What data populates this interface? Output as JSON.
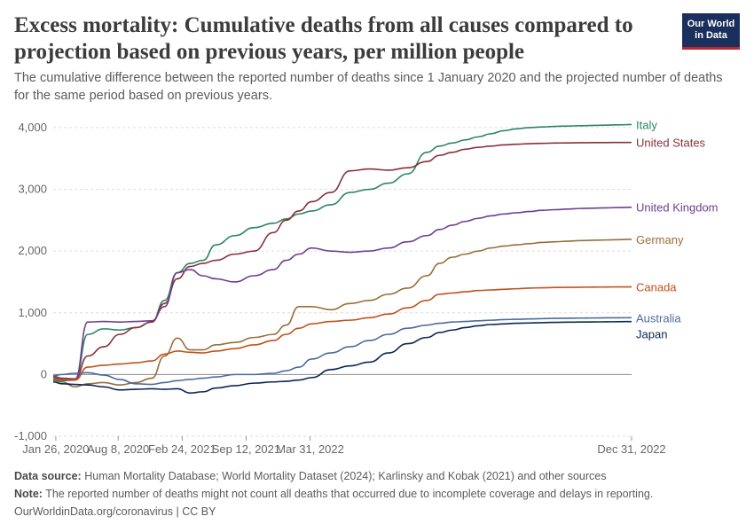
{
  "title": "Excess mortality: Cumulative deaths from all causes compared to projection based on previous years, per million people",
  "subtitle": "The cumulative difference between the reported number of deaths since 1 January 2020 and the projected number of deaths for the same period based on previous years.",
  "logo": {
    "line1": "Our World",
    "line2": "in Data"
  },
  "footer": {
    "source_label": "Data source:",
    "source_text": "Human Mortality Database; World Mortality Dataset (2024); Karlinsky and Kobak (2021) and other sources",
    "note_label": "Note:",
    "note_text": "The reported number of deaths might not count all deaths that occurred due to incomplete coverage and delays in reporting.",
    "credit": "OurWorldinData.org/coronavirus | CC BY"
  },
  "chart_data": {
    "type": "line",
    "title": "Excess mortality: Cumulative deaths from all causes compared to projection based on previous years, per million people",
    "xlabel": "",
    "ylabel": "",
    "x_unit": "days since Jan 26, 2020",
    "xlim": [
      -8,
      1800
    ],
    "ylim": [
      -1000,
      4200
    ],
    "yticks": [
      -1000,
      0,
      1000,
      2000,
      3000,
      4000
    ],
    "ytick_labels": [
      "-1,000",
      "0",
      "1,000",
      "2,000",
      "3,000",
      "4,000"
    ],
    "xticks": [
      0,
      195,
      395,
      595,
      795,
      1800
    ],
    "xtick_labels": [
      "Jan 26, 2020",
      "Aug 8, 2020",
      "Feb 24, 2021",
      "Sep 12, 2021",
      "Mar 31, 2022",
      "Dec 31, 2022"
    ],
    "grid": "horizontal dashed",
    "legend": "right, inline labels",
    "x": [
      -8,
      20,
      60,
      100,
      150,
      200,
      250,
      300,
      340,
      380,
      420,
      460,
      500,
      560,
      620,
      680,
      720,
      760,
      800,
      860,
      920,
      980,
      1040,
      1100,
      1160,
      1200,
      1240,
      1280,
      1320,
      1360,
      1400,
      1440,
      1480,
      1520,
      1560,
      1600,
      1640,
      1680,
      1720,
      1760,
      1800
    ],
    "series": [
      {
        "name": "Italy",
        "color": "#2c8465",
        "values": [
          -80,
          -100,
          -90,
          650,
          740,
          720,
          760,
          850,
          1200,
          1650,
          1800,
          1850,
          2100,
          2250,
          2380,
          2450,
          2520,
          2600,
          2650,
          2750,
          2950,
          3000,
          3100,
          3250,
          3600,
          3700,
          3750,
          3800,
          3850,
          3900,
          3950,
          3980,
          4000,
          4010,
          4020,
          4025,
          4030,
          4035,
          4040,
          4045,
          4050
        ]
      },
      {
        "name": "United States",
        "color": "#883039",
        "values": [
          -30,
          -60,
          -70,
          300,
          450,
          650,
          760,
          850,
          1150,
          1550,
          1750,
          1800,
          1850,
          1950,
          2000,
          2300,
          2500,
          2650,
          2800,
          2950,
          3300,
          3330,
          3310,
          3350,
          3450,
          3550,
          3600,
          3650,
          3680,
          3700,
          3720,
          3730,
          3740,
          3745,
          3750,
          3752,
          3755,
          3757,
          3758,
          3759,
          3760
        ]
      },
      {
        "name": "United Kingdom",
        "color": "#6d3e91",
        "values": [
          -50,
          -70,
          -80,
          850,
          860,
          850,
          860,
          870,
          1100,
          1650,
          1700,
          1600,
          1550,
          1500,
          1600,
          1700,
          1850,
          1950,
          2050,
          2000,
          1980,
          2000,
          2050,
          2150,
          2250,
          2350,
          2420,
          2480,
          2530,
          2570,
          2600,
          2620,
          2640,
          2660,
          2670,
          2680,
          2690,
          2695,
          2700,
          2705,
          2710
        ]
      },
      {
        "name": "Germany",
        "color": "#996d39",
        "values": [
          -100,
          -120,
          -200,
          -150,
          -130,
          -170,
          -130,
          -60,
          300,
          590,
          400,
          400,
          480,
          520,
          600,
          650,
          800,
          1100,
          1100,
          1050,
          1150,
          1200,
          1300,
          1400,
          1600,
          1800,
          1900,
          1950,
          2000,
          2050,
          2080,
          2100,
          2120,
          2140,
          2150,
          2160,
          2170,
          2175,
          2180,
          2185,
          2190
        ]
      },
      {
        "name": "Canada",
        "color": "#c15019",
        "values": [
          -60,
          -80,
          -90,
          120,
          150,
          170,
          190,
          220,
          330,
          380,
          360,
          350,
          380,
          420,
          480,
          550,
          650,
          750,
          820,
          860,
          880,
          920,
          980,
          1080,
          1200,
          1300,
          1320,
          1340,
          1360,
          1370,
          1380,
          1390,
          1400,
          1405,
          1410,
          1412,
          1414,
          1416,
          1418,
          1419,
          1420
        ]
      },
      {
        "name": "Australia",
        "color": "#4c6a9c",
        "values": [
          -20,
          0,
          20,
          30,
          -10,
          -80,
          -150,
          -160,
          -130,
          -100,
          -80,
          -60,
          -40,
          0,
          0,
          20,
          60,
          120,
          250,
          350,
          450,
          550,
          650,
          750,
          800,
          830,
          850,
          860,
          870,
          880,
          890,
          895,
          900,
          905,
          910,
          912,
          914,
          916,
          918,
          919,
          920
        ]
      },
      {
        "name": "Japan",
        "color": "#0a2855",
        "values": [
          -120,
          -150,
          -160,
          -170,
          -200,
          -250,
          -240,
          -230,
          -240,
          -230,
          -300,
          -280,
          -220,
          -180,
          -140,
          -120,
          -110,
          -90,
          -50,
          80,
          140,
          200,
          350,
          500,
          600,
          680,
          720,
          760,
          790,
          810,
          820,
          830,
          835,
          840,
          845,
          848,
          850,
          852,
          854,
          856,
          858
        ]
      }
    ]
  }
}
